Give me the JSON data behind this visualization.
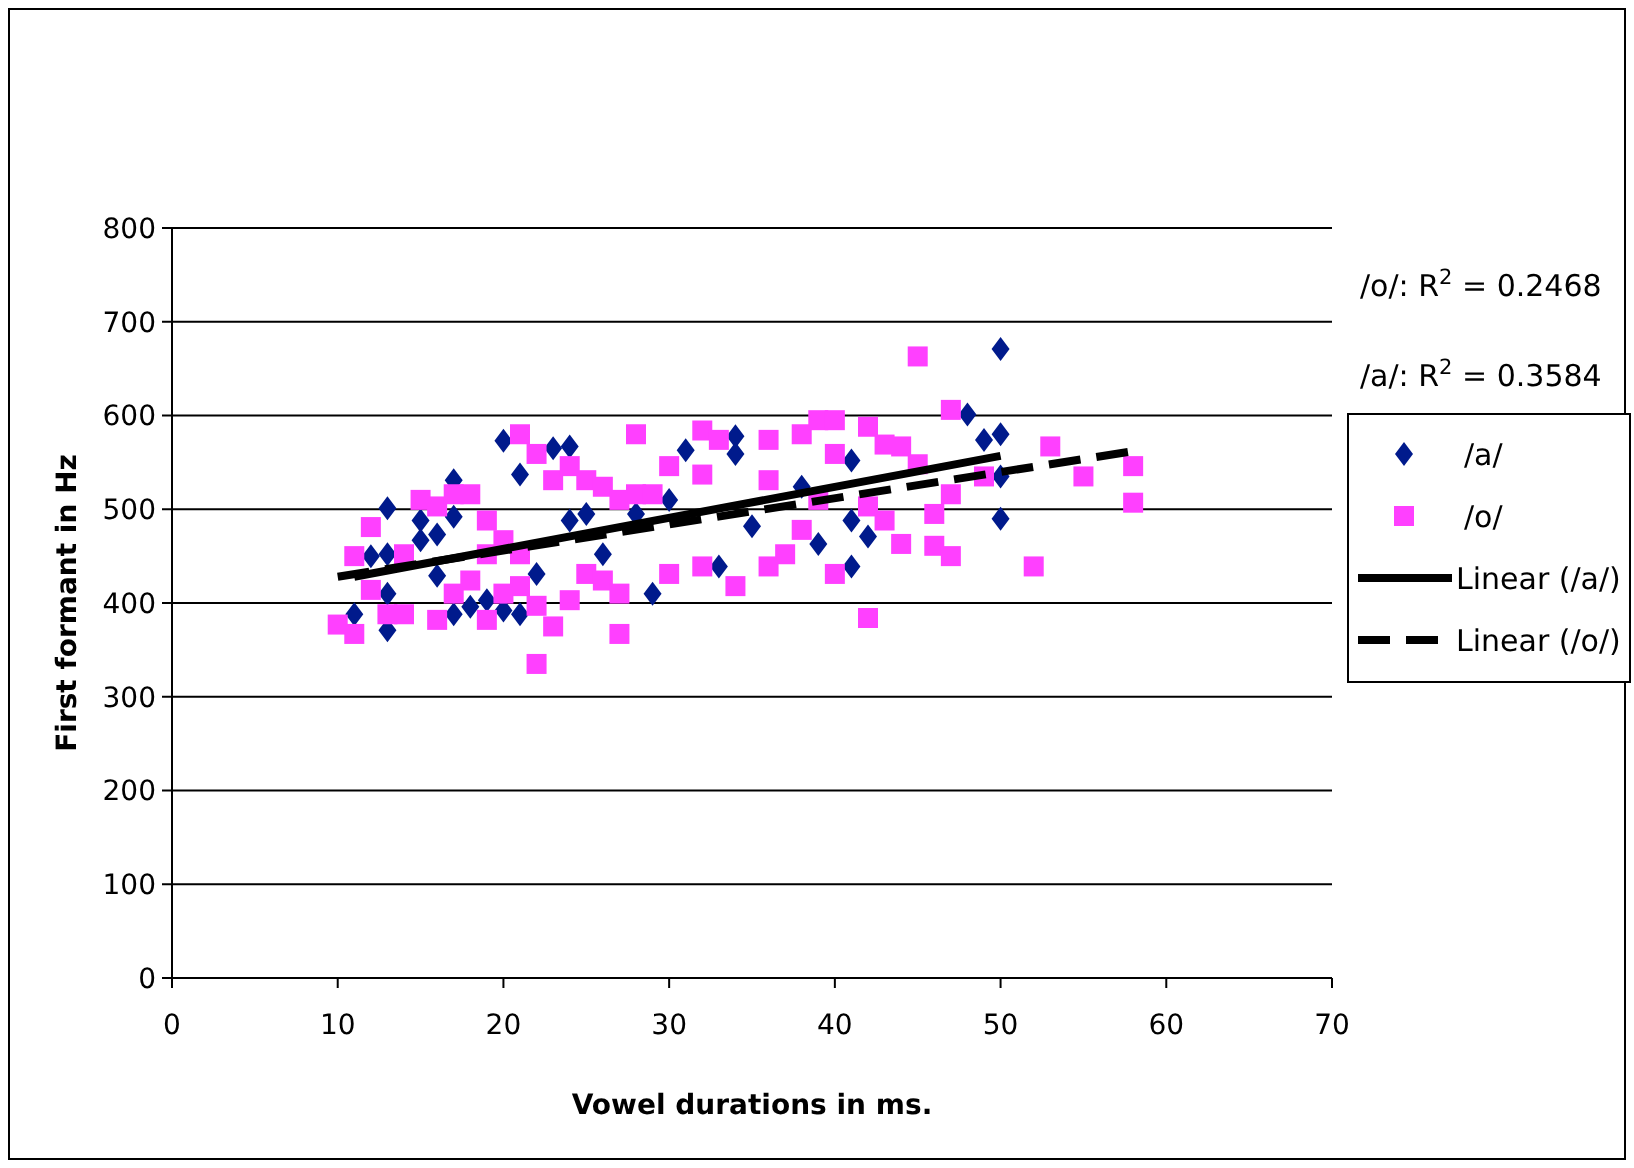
{
  "chart_data": {
    "type": "scatter",
    "xlabel": "Vowel durations in ms.",
    "ylabel": "First formant in Hz",
    "xlim": [
      0,
      70
    ],
    "xticks": [
      0,
      10,
      20,
      30,
      40,
      50,
      60,
      70
    ],
    "ylim": [
      0,
      800
    ],
    "yticks": [
      0,
      100,
      200,
      300,
      400,
      500,
      600,
      700,
      800
    ],
    "grid": "y",
    "legend": "right",
    "annotations": [
      "/o/: R$^{2}$ = 0.2468",
      "/a/: R$^{2}$ = 0.3584"
    ],
    "series": [
      {
        "name": "/a/",
        "color": "#001a8c",
        "marker": "diamond",
        "x": [
          31,
          34,
          34,
          30,
          35,
          33,
          39,
          41,
          41,
          42,
          41,
          48,
          49,
          50,
          50,
          50,
          50,
          38,
          20,
          23,
          24,
          21,
          17,
          13,
          12,
          13,
          15,
          15,
          16,
          11,
          13,
          13,
          16,
          17,
          18,
          19,
          22,
          20,
          21,
          17,
          24,
          25,
          26,
          28,
          29
        ],
        "values": [
          563,
          578,
          559,
          510,
          482,
          439,
          463,
          552,
          488,
          471,
          439,
          601,
          574,
          671,
          580,
          535,
          490,
          524,
          573,
          565,
          567,
          537,
          531,
          501,
          450,
          452,
          488,
          467,
          473,
          388,
          410,
          371,
          429,
          388,
          396,
          403,
          431,
          392,
          388,
          492,
          488,
          495,
          452,
          495,
          410
        ]
      },
      {
        "name": "/o/",
        "color": "#ff40ff",
        "marker": "square",
        "x": [
          10,
          11,
          11,
          12,
          12,
          13,
          14,
          14,
          15,
          16,
          17,
          18,
          16,
          17,
          18,
          19,
          20,
          19,
          21,
          22,
          22,
          23,
          23,
          24,
          25,
          26,
          27,
          28,
          28,
          27,
          25,
          26,
          29,
          30,
          30,
          24,
          21,
          19,
          20,
          21,
          22,
          27,
          32,
          33,
          32,
          32,
          34,
          36,
          36,
          36,
          37,
          38,
          39,
          40,
          40,
          40,
          39,
          38,
          42,
          43,
          44,
          45,
          42,
          43,
          44,
          42,
          45,
          46,
          46,
          47,
          47,
          47,
          49,
          52,
          53,
          55,
          58,
          58
        ],
        "values": [
          377,
          367,
          450,
          481,
          414,
          388,
          388,
          452,
          510,
          503,
          516,
          516,
          382,
          410,
          424,
          382,
          410,
          488,
          580,
          559,
          335,
          375,
          531,
          546,
          531,
          524,
          510,
          580,
          516,
          367,
          431,
          424,
          516,
          546,
          431,
          403,
          452,
          452,
          467,
          418,
          397,
          410,
          584,
          574,
          537,
          439,
          418,
          574,
          531,
          439,
          452,
          580,
          595,
          595,
          559,
          431,
          510,
          478,
          588,
          569,
          567,
          548,
          503,
          488,
          463,
          384,
          663,
          495,
          461,
          606,
          516,
          450,
          535,
          439,
          567,
          535,
          546,
          507
        ]
      },
      {
        "name": "Linear (/a/)",
        "type": "line",
        "color": "#000000",
        "marker": "none",
        "line_style": "solid",
        "x": [
          11,
          50
        ],
        "values": [
          428,
          557
        ]
      },
      {
        "name": "Linear (/o/)",
        "type": "line",
        "color": "#000000",
        "marker": "none",
        "line_style": "dashed",
        "x": [
          10,
          58
        ],
        "values": [
          428,
          562
        ]
      }
    ]
  }
}
